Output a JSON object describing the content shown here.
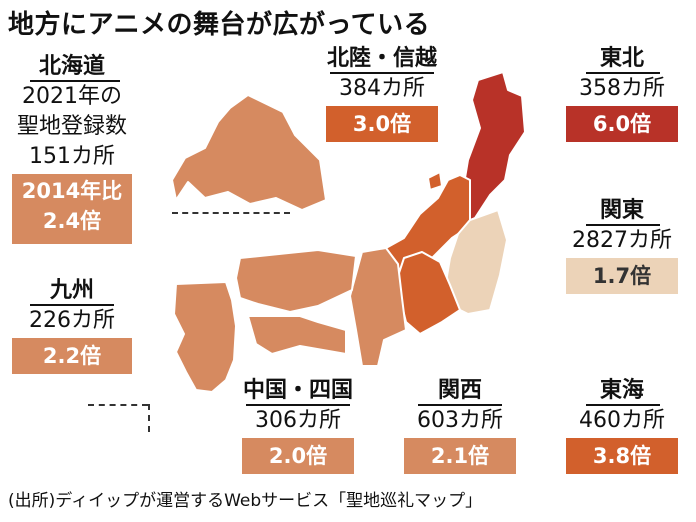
{
  "title": "地方にアニメの舞台が広がっている",
  "source": "(出所)ディイップが運営するWebサービス「聖地巡礼マップ」",
  "colors": {
    "dark_red": "#b83228",
    "orange": "#d2602c",
    "mid": "#d68a60",
    "beige": "#ecd3b8"
  },
  "chart_data": {
    "type": "choropleth",
    "title": "地方にアニメの舞台が広がっている",
    "metric": "聖地の登録数",
    "unit": "カ所",
    "ratio_label": "2014年比",
    "regions": [
      {
        "key": "hokkaido",
        "name": "北海道",
        "lines": [
          "2021年の",
          "聖地登録数",
          "151カ所"
        ],
        "count_label": "151カ所",
        "count": 151,
        "ratio_label": "2014年比\n2.4倍",
        "ratio": 2.4,
        "ratio_text": "2.4倍"
      },
      {
        "key": "hokuriku",
        "name": "北陸・信越",
        "count_label": "384カ所",
        "count": 384,
        "ratio": 3.0,
        "ratio_text": "3.0倍"
      },
      {
        "key": "tohoku",
        "name": "東北",
        "count_label": "358カ所",
        "count": 358,
        "ratio": 6.0,
        "ratio_text": "6.0倍"
      },
      {
        "key": "kanto",
        "name": "関東",
        "count_label": "2827カ所",
        "count": 2827,
        "ratio": 1.7,
        "ratio_text": "1.7倍"
      },
      {
        "key": "kyushu",
        "name": "九州",
        "count_label": "226カ所",
        "count": 226,
        "ratio": 2.2,
        "ratio_text": "2.2倍"
      },
      {
        "key": "chugoku_shikoku",
        "name": "中国・四国",
        "count_label": "306カ所",
        "count": 306,
        "ratio": 2.0,
        "ratio_text": "2.0倍"
      },
      {
        "key": "kansai",
        "name": "関西",
        "count_label": "603カ所",
        "count": 603,
        "ratio": 2.1,
        "ratio_text": "2.1倍"
      },
      {
        "key": "tokai",
        "name": "東海",
        "count_label": "460カ所",
        "count": 460,
        "ratio": 3.8,
        "ratio_text": "3.8倍"
      }
    ]
  }
}
